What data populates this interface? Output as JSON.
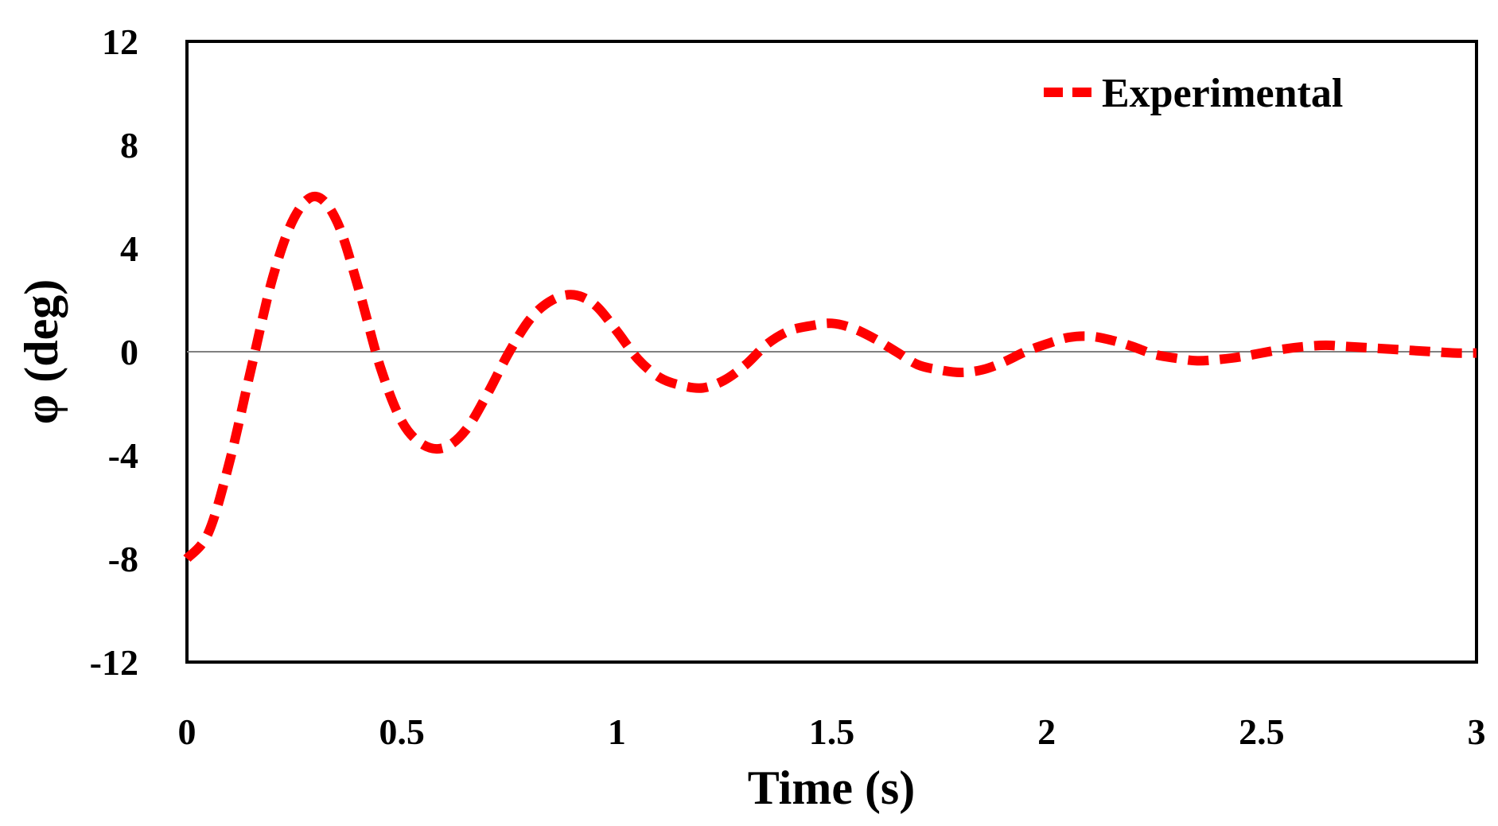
{
  "chart_data": {
    "type": "line",
    "title": "",
    "xlabel": "Time (s)",
    "ylabel": "φ (deg)",
    "xlim": [
      0,
      3
    ],
    "ylim": [
      -12,
      12
    ],
    "x_ticks": [
      "0",
      "0.5",
      "1",
      "1.5",
      "2",
      "2.5",
      "3"
    ],
    "x_tick_values": [
      0,
      0.5,
      1,
      1.5,
      2,
      2.5,
      3
    ],
    "y_ticks": [
      "12",
      "8",
      "4",
      "0",
      "-4",
      "-8",
      "-12"
    ],
    "y_tick_values": [
      12,
      8,
      4,
      0,
      -4,
      -8,
      -12
    ],
    "grid": false,
    "legend_position": "top-right",
    "series": [
      {
        "name": "Experimental",
        "color": "#ff0000",
        "line_style": "dashed",
        "x": [
          0,
          0.05,
          0.1,
          0.15,
          0.2,
          0.25,
          0.3,
          0.35,
          0.4,
          0.45,
          0.5,
          0.55,
          0.6,
          0.65,
          0.7,
          0.75,
          0.8,
          0.85,
          0.9,
          0.95,
          1.0,
          1.05,
          1.1,
          1.15,
          1.2,
          1.25,
          1.3,
          1.35,
          1.4,
          1.45,
          1.5,
          1.55,
          1.6,
          1.65,
          1.7,
          1.75,
          1.8,
          1.85,
          1.9,
          1.95,
          2.0,
          2.05,
          2.1,
          2.15,
          2.2,
          2.25,
          2.3,
          2.35,
          2.4,
          2.45,
          2.5,
          2.55,
          2.6,
          2.65,
          2.7,
          2.75,
          2.8,
          2.85,
          2.9,
          2.95,
          3.0
        ],
        "y": [
          -8.0,
          -7.0,
          -4.2,
          -0.6,
          2.9,
          5.2,
          6.0,
          5.0,
          2.4,
          -0.6,
          -2.7,
          -3.6,
          -3.7,
          -3.0,
          -1.6,
          0.0,
          1.3,
          2.0,
          2.2,
          1.8,
          0.8,
          -0.3,
          -1.0,
          -1.3,
          -1.4,
          -1.1,
          -0.5,
          0.3,
          0.8,
          1.0,
          1.1,
          0.9,
          0.5,
          0.0,
          -0.5,
          -0.7,
          -0.8,
          -0.7,
          -0.4,
          0.0,
          0.3,
          0.55,
          0.6,
          0.45,
          0.2,
          -0.1,
          -0.25,
          -0.35,
          -0.3,
          -0.2,
          -0.05,
          0.1,
          0.2,
          0.25,
          0.2,
          0.15,
          0.1,
          0.05,
          0.0,
          -0.05,
          -0.05
        ]
      }
    ]
  }
}
